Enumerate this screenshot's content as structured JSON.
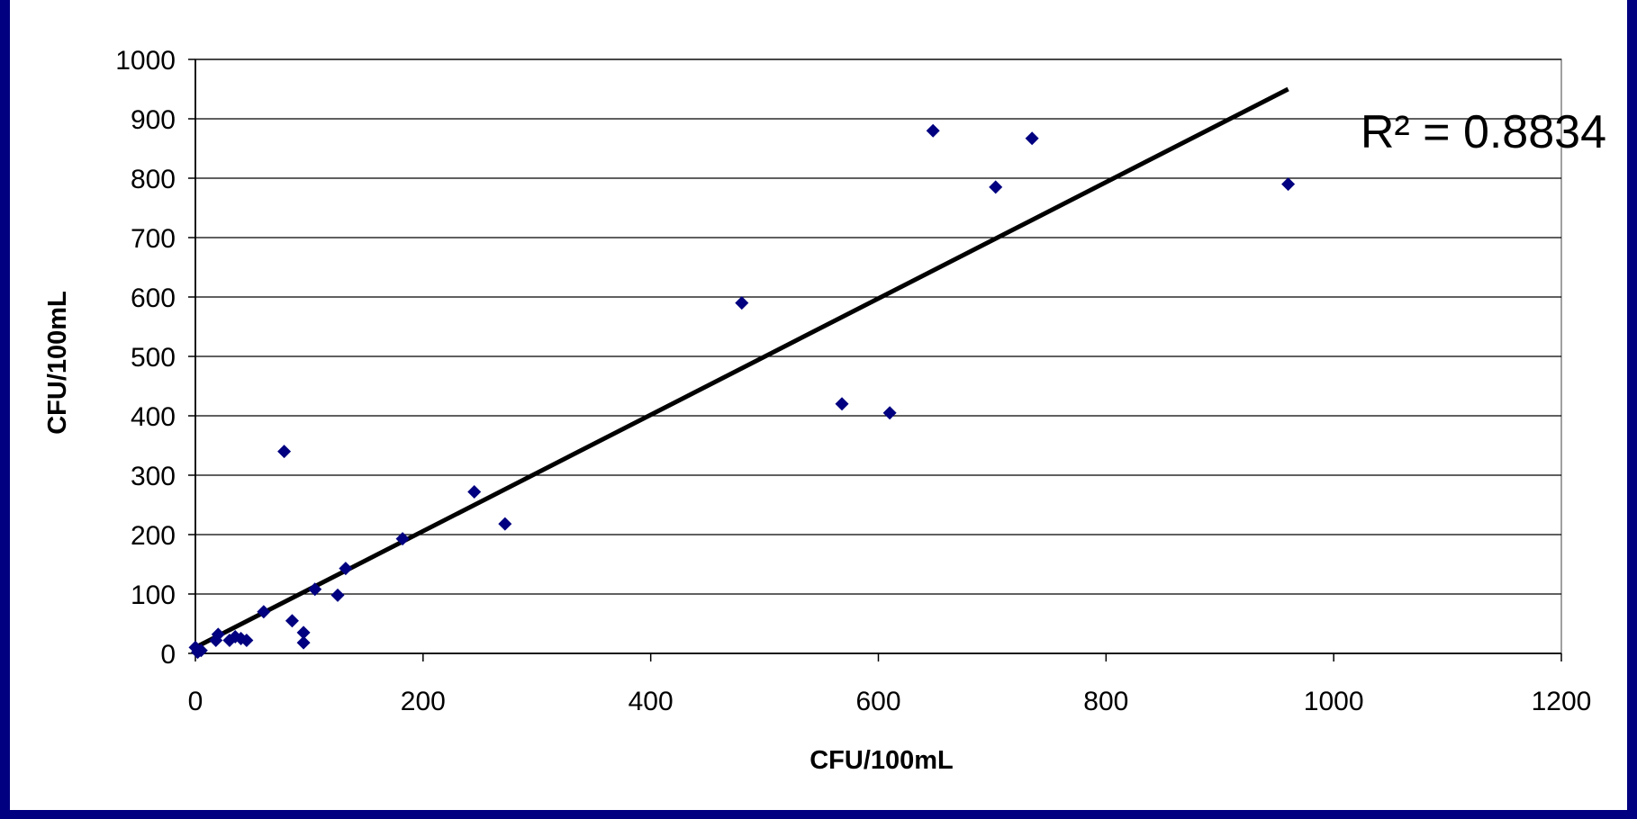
{
  "chart_data": {
    "type": "scatter",
    "title": "",
    "xlabel": "CFU/100mL",
    "ylabel": "CFU/100mL",
    "xlim": [
      0,
      1200
    ],
    "ylim": [
      0,
      1000
    ],
    "x_ticks": [
      0,
      200,
      400,
      600,
      800,
      1000,
      1200
    ],
    "y_ticks": [
      0,
      100,
      200,
      300,
      400,
      500,
      600,
      700,
      800,
      900,
      1000
    ],
    "grid": "horizontal",
    "legend": "none",
    "marker": "diamond",
    "marker_color": "#000080",
    "line_color": "#000000",
    "series": [
      {
        "points": [
          [
            0,
            10
          ],
          [
            2,
            2
          ],
          [
            5,
            5
          ],
          [
            18,
            22
          ],
          [
            20,
            32
          ],
          [
            30,
            22
          ],
          [
            35,
            28
          ],
          [
            40,
            25
          ],
          [
            45,
            22
          ],
          [
            60,
            70
          ],
          [
            78,
            340
          ],
          [
            85,
            55
          ],
          [
            95,
            35
          ],
          [
            95,
            18
          ],
          [
            105,
            108
          ],
          [
            125,
            98
          ],
          [
            132,
            143
          ],
          [
            182,
            193
          ],
          [
            245,
            272
          ],
          [
            272,
            218
          ],
          [
            480,
            590
          ],
          [
            568,
            420
          ],
          [
            610,
            405
          ],
          [
            648,
            880
          ],
          [
            703,
            785
          ],
          [
            735,
            867
          ],
          [
            960,
            790
          ]
        ]
      }
    ],
    "trendline": {
      "type": "linear",
      "x_range": [
        0,
        960
      ],
      "y_range": [
        10,
        950
      ]
    },
    "annotations": [
      {
        "text": "R² = 0.8834",
        "position": "top-right"
      }
    ]
  }
}
